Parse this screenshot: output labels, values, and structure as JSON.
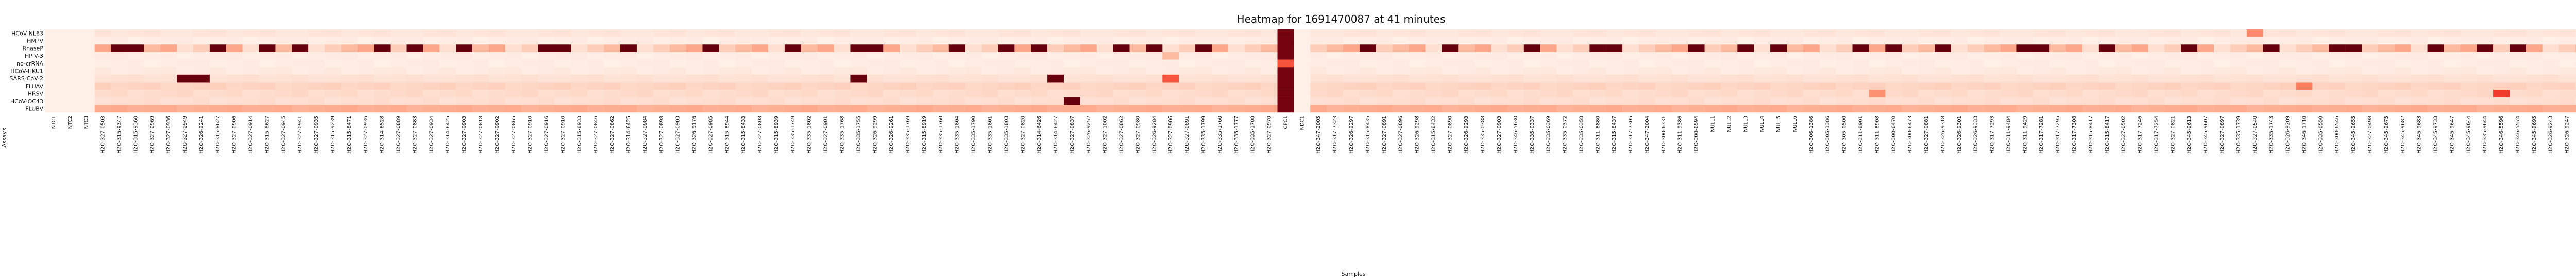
{
  "chart_data": {
    "type": "heatmap",
    "title": "Heatmap for 1691470087 at 41 minutes",
    "xlabel": "Samples",
    "ylabel": "Assays",
    "colorscale": {
      "min": 0.1,
      "max": 0.9,
      "ticks": [
        "0.2",
        "0.3",
        "0.4",
        "0.5",
        "0.6",
        "0.7",
        "0.8",
        "0.9"
      ],
      "colors": [
        "#fff5f0",
        "#fee0d2",
        "#fcbba1",
        "#fc9272",
        "#fb6a4a",
        "#ef3b2c",
        "#cb181d",
        "#a50f15",
        "#67000d"
      ]
    },
    "rows": [
      "HCoV-NL63",
      "HMPV",
      "RnaseP",
      "HPIV-3",
      "no-crRNA",
      "HCoV-HKU1",
      "SARS-CoV-2",
      "FLUAV",
      "HRSV",
      "HCoV-OC43",
      "FLUBV"
    ],
    "columns": [
      "NTC1",
      "NTC2",
      "NTC3",
      "H2O-327-0503",
      "H2O-315-9347",
      "H2O-315-9360",
      "H2O-327-0969",
      "H2O-327-0936",
      "H2O-327-0949",
      "H2O-326-9241",
      "H2O-315-8627",
      "H2O-327-0906",
      "H2O-327-0914",
      "H2O-315-8627",
      "H2O-327-0945",
      "H2O-327-0941",
      "H2O-327-0935",
      "H2O-315-9239",
      "H2O-315-8471",
      "H2O-327-0936",
      "H2O-314-6528",
      "H2O-327-0889",
      "H2O-327-0883",
      "H2O-327-0934",
      "H2O-314-6425",
      "H2O-327-0903",
      "H2O-327-0818",
      "H2O-327-0902",
      "H2O-327-0865",
      "H2O-327-0910",
      "H2O-327-0916",
      "H2O-327-0910",
      "H2O-315-8933",
      "H2O-327-0846",
      "H2O-327-0862",
      "H2O-314-6425",
      "H2O-327-0984",
      "H2O-327-0898",
      "H2O-327-0903",
      "H2O-326-9176",
      "H2O-327-0985",
      "H2O-315-8944",
      "H2O-315-8433",
      "H2O-327-0808",
      "H2O-315-8939",
      "H2O-335-1749",
      "H2O-335-1802",
      "H2O-327-0901",
      "H2O-335-1768",
      "H2O-335-1755",
      "H2O-326-9299",
      "H2O-326-9261",
      "H2O-335-1769",
      "H2O-315-8919",
      "H2O-335-1760",
      "H2O-335-1804",
      "H2O-335-1790",
      "H2O-335-1801",
      "H2O-335-1803",
      "H2O-327-0820",
      "H2O-314-6426",
      "H2O-314-6427",
      "H2O-327-0837",
      "H2O-326-9252",
      "H2O-327-1002",
      "H2O-327-0862",
      "H2O-327-0980",
      "H2O-326-9284",
      "H2O-327-0906",
      "H2O-327-0891",
      "H2O-335-1799",
      "H2O-335-1760",
      "H2O-335-1777",
      "H2O-335-1708",
      "H2O-327-0970",
      "CPC1",
      "NDC1",
      "H2O-347-2005",
      "H2O-317-7323",
      "H2O-326-9297",
      "H2O-315-8435",
      "H2O-327-0891",
      "H2O-327-0896",
      "H2O-326-9298",
      "H2O-315-8432",
      "H2O-327-0890",
      "H2O-326-9293",
      "H2O-335-0388",
      "H2O-327-0903",
      "H2O-346-5630",
      "H2O-335-0337",
      "H2O-335-0369",
      "H2O-335-0372",
      "H2O-335-0358",
      "H2O-311-8880",
      "H2O-315-8437",
      "H2O-317-7305",
      "H2O-347-2004",
      "H2O-300-6331",
      "H2O-311-9386",
      "H2O-300-6594",
      "NULL1",
      "NULL2",
      "NULL3",
      "NULL4",
      "NULL5",
      "NULL6",
      "H2O-306-1386",
      "H2O-305-1386",
      "H2O-305-0500",
      "H2O-311-8901",
      "H2O-311-8908",
      "H2O-300-6470",
      "H2O-300-6473",
      "H2O-327-0881",
      "H2O-326-9318",
      "H2O-326-9301",
      "H2O-326-9333",
      "H2O-317-7293",
      "H2O-311-9484",
      "H2O-311-9429",
      "H2O-317-7281",
      "H2O-317-7295",
      "H2O-317-7308",
      "H2O-315-8417",
      "H2O-315-8417",
      "H2O-327-0502",
      "H2O-317-7246",
      "H2O-317-7254",
      "H2O-327-0821",
      "H2O-345-9613",
      "H2O-345-9607",
      "H2O-327-0897",
      "H2O-335-1739",
      "H2O-327-0540",
      "H2O-335-1743",
      "H2O-326-9209",
      "H2O-346-1710",
      "H2O-335-0550",
      "H2O-300-6546",
      "H2O-345-9655",
      "H2O-327-0498",
      "H2O-345-9675",
      "H2O-345-9682",
      "H2O-345-9683",
      "H2O-345-9733",
      "H2O-345-9647",
      "H2O-345-9644",
      "H2O-335-9644",
      "H2O-346-5596",
      "H2O-346-5574",
      "H2O-345-9695",
      "H2O-326-9243",
      "H2O-326-9247",
      "H2O-326-9248",
      "H2O-300-6458",
      "CPC2",
      "NTC4",
      "NDC2"
    ],
    "special_columns": {
      "bright_col_5": [
        0,
        0,
        0,
        0,
        0,
        0,
        1,
        0,
        0,
        0,
        0
      ],
      "cpc_strong": [
        1,
        1,
        1,
        1,
        1,
        1,
        1,
        1,
        1,
        1,
        1
      ],
      "ndc_weak": [
        0,
        0,
        0,
        0,
        0,
        0,
        0,
        0,
        0,
        0,
        0
      ]
    }
  }
}
